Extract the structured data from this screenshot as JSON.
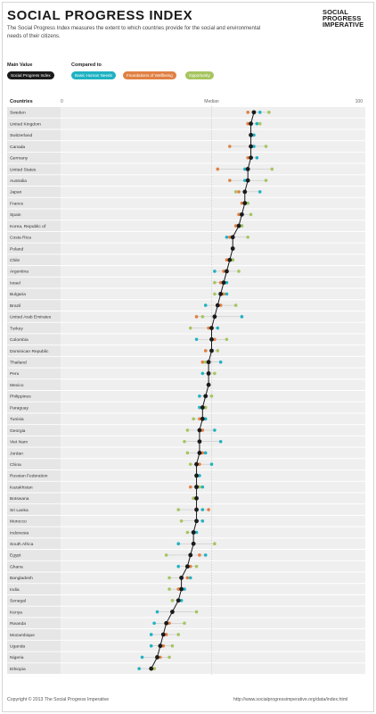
{
  "header": {
    "title": "SOCIAL PROGRESS INDEX",
    "subtitle": "The Social Progress Index measures the extent to which countries provide for the social and environmental needs of their citizens.",
    "logo_line1": "SOCIAL",
    "logo_line2": "PROGRESS",
    "logo_line3": "IMPERATIVE"
  },
  "controls": {
    "main_value_label": "Main Value",
    "compared_to_label": "Compared to",
    "main_chip": "Social Progress Index",
    "bhn_chip": "Basic Human Needs",
    "fow_chip": "Foundations of Wellbeing",
    "opp_chip": "Opportunity"
  },
  "colors": {
    "spi": "#1a1a1a",
    "bhn": "#1fb2c2",
    "fow": "#e08043",
    "opp": "#a6c560",
    "row_bg": "#efefef"
  },
  "footer": {
    "copyright": "Copyright © 2013 The Social Progress Imperative",
    "url": "http://www.socialprogressimperative.org/data/index.html"
  },
  "chart_data": {
    "type": "scatter",
    "column_header": "Countries",
    "xlim": [
      0,
      100
    ],
    "tick_labels": [
      "0",
      "Median",
      "100"
    ],
    "median": 50,
    "series_names": [
      "Social Progress Index",
      "Basic Human Needs",
      "Foundations of Wellbeing",
      "Opportunity"
    ],
    "countries": [
      {
        "name": "Sweden",
        "spi": 64,
        "bhn": 66,
        "fow": 62,
        "opp": 69
      },
      {
        "name": "United Kingdom",
        "spi": 63,
        "bhn": 65,
        "fow": 62,
        "opp": 66
      },
      {
        "name": "Switzerland",
        "spi": 63,
        "bhn": 64,
        "fow": 63,
        "opp": 63
      },
      {
        "name": "Canada",
        "spi": 63,
        "bhn": 64,
        "fow": 56,
        "opp": 68
      },
      {
        "name": "Germany",
        "spi": 63,
        "bhn": 65,
        "fow": 62,
        "opp": 63
      },
      {
        "name": "United States",
        "spi": 62,
        "bhn": 61,
        "fow": 52,
        "opp": 70
      },
      {
        "name": "Australia",
        "spi": 62,
        "bhn": 61,
        "fow": 56,
        "opp": 68
      },
      {
        "name": "Japan",
        "spi": 61,
        "bhn": 66,
        "fow": 59,
        "opp": 58
      },
      {
        "name": "France",
        "spi": 61,
        "bhn": 62,
        "fow": 60,
        "opp": 62
      },
      {
        "name": "Spain",
        "spi": 60,
        "bhn": 60,
        "fow": 59,
        "opp": 63
      },
      {
        "name": "Korea, Republic of",
        "spi": 59,
        "bhn": 60,
        "fow": 58,
        "opp": 60
      },
      {
        "name": "Costa Rica",
        "spi": 57,
        "bhn": 55,
        "fow": 56,
        "opp": 62
      },
      {
        "name": "Poland",
        "spi": 57,
        "bhn": 57,
        "fow": 57,
        "opp": 57
      },
      {
        "name": "Chile",
        "spi": 56,
        "bhn": 57,
        "fow": 55,
        "opp": 57
      },
      {
        "name": "Argentina",
        "spi": 55,
        "bhn": 51,
        "fow": 54,
        "opp": 59
      },
      {
        "name": "Israel",
        "spi": 54,
        "bhn": 55,
        "fow": 53,
        "opp": 51
      },
      {
        "name": "Bulgaria",
        "spi": 53,
        "bhn": 55,
        "fow": 54,
        "opp": 51
      },
      {
        "name": "Brazil",
        "spi": 52,
        "bhn": 48,
        "fow": 53,
        "opp": 58
      },
      {
        "name": "United Arab Emirates",
        "spi": 51,
        "bhn": 60,
        "fow": 45,
        "opp": 47
      },
      {
        "name": "Turkey",
        "spi": 50,
        "bhn": 52,
        "fow": 49,
        "opp": 43
      },
      {
        "name": "Colombia",
        "spi": 50,
        "bhn": 45,
        "fow": 51,
        "opp": 55
      },
      {
        "name": "Dominican Republic",
        "spi": 50,
        "bhn": 50,
        "fow": 48,
        "opp": 52
      },
      {
        "name": "Thailand",
        "spi": 49,
        "bhn": 53,
        "fow": 47,
        "opp": 48
      },
      {
        "name": "Peru",
        "spi": 49,
        "bhn": 47,
        "fow": 49,
        "opp": 51
      },
      {
        "name": "Mexico",
        "spi": 49,
        "bhn": 49,
        "fow": 49,
        "opp": 49
      },
      {
        "name": "Philippines",
        "spi": 48,
        "bhn": 46,
        "fow": 48,
        "opp": 50
      },
      {
        "name": "Paraguay",
        "spi": 47,
        "bhn": 46,
        "fow": 48,
        "opp": 48
      },
      {
        "name": "Tunisia",
        "spi": 47,
        "bhn": 48,
        "fow": 46,
        "opp": 44
      },
      {
        "name": "Georgia",
        "spi": 46,
        "bhn": 51,
        "fow": 47,
        "opp": 42
      },
      {
        "name": "Viet Nam",
        "spi": 46,
        "bhn": 53,
        "fow": 46,
        "opp": 41
      },
      {
        "name": "Jordan",
        "spi": 46,
        "bhn": 48,
        "fow": 47,
        "opp": 42
      },
      {
        "name": "China",
        "spi": 45,
        "bhn": 50,
        "fow": 46,
        "opp": 43
      },
      {
        "name": "Russian Federation",
        "spi": 45,
        "bhn": 46,
        "fow": 45,
        "opp": 45
      },
      {
        "name": "Kazakhstan",
        "spi": 45,
        "bhn": 47,
        "fow": 43,
        "opp": 46
      },
      {
        "name": "Botswana",
        "spi": 45,
        "bhn": 45,
        "fow": 44,
        "opp": 44
      },
      {
        "name": "Sri Lanka",
        "spi": 45,
        "bhn": 47,
        "fow": 49,
        "opp": 39
      },
      {
        "name": "Morocco",
        "spi": 45,
        "bhn": 47,
        "fow": 45,
        "opp": 40
      },
      {
        "name": "Indonesia",
        "spi": 44,
        "bhn": 45,
        "fow": 44,
        "opp": 42
      },
      {
        "name": "South Africa",
        "spi": 44,
        "bhn": 39,
        "fow": 44,
        "opp": 51
      },
      {
        "name": "Egypt",
        "spi": 43,
        "bhn": 48,
        "fow": 46,
        "opp": 35
      },
      {
        "name": "Ghana",
        "spi": 42,
        "bhn": 39,
        "fow": 43,
        "opp": 45
      },
      {
        "name": "Bangladesh",
        "spi": 40,
        "bhn": 43,
        "fow": 42,
        "opp": 36
      },
      {
        "name": "India",
        "spi": 40,
        "bhn": 41,
        "fow": 39,
        "opp": 36
      },
      {
        "name": "Senegal",
        "spi": 39,
        "bhn": 40,
        "fow": 39,
        "opp": 37
      },
      {
        "name": "Kenya",
        "spi": 37,
        "bhn": 32,
        "fow": 37,
        "opp": 45
      },
      {
        "name": "Rwanda",
        "spi": 35,
        "bhn": 31,
        "fow": 36,
        "opp": 41
      },
      {
        "name": "Mozambique",
        "spi": 34,
        "bhn": 30,
        "fow": 35,
        "opp": 39
      },
      {
        "name": "Uganda",
        "spi": 33,
        "bhn": 30,
        "fow": 34,
        "opp": 37
      },
      {
        "name": "Nigeria",
        "spi": 32,
        "bhn": 27,
        "fow": 33,
        "opp": 36
      },
      {
        "name": "Ethiopia",
        "spi": 30,
        "bhn": 26,
        "fow": 31,
        "opp": 31
      }
    ]
  }
}
